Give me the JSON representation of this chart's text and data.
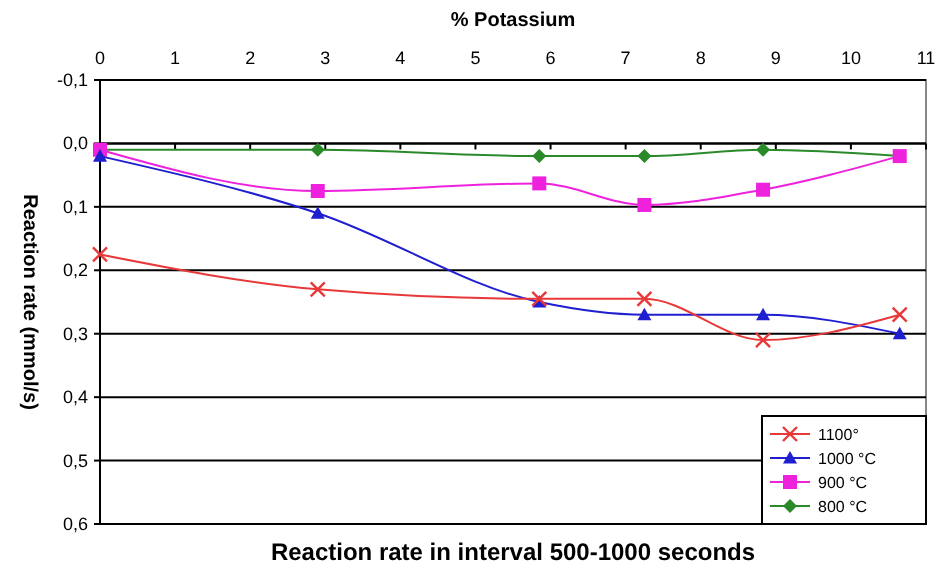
{
  "chart_data": {
    "type": "line",
    "title": "Reaction rate in interval 500-1000 seconds",
    "xlabel": "% Potassium",
    "ylabel": "Reaction rate (mmol/s)",
    "x": [
      0,
      2.9,
      5.85,
      7.25,
      8.83,
      10.65
    ],
    "xlim": [
      0,
      11
    ],
    "xticks": [
      0,
      1,
      2,
      3,
      4,
      5,
      6,
      7,
      8,
      9,
      10,
      11
    ],
    "ylim": [
      0.6,
      -0.1
    ],
    "yticks": [
      {
        "value": -0.1,
        "label": "-0,1"
      },
      {
        "value": 0,
        "label": "0,0"
      },
      {
        "value": 0.1,
        "label": "0,1"
      },
      {
        "value": 0.2,
        "label": "0,2"
      },
      {
        "value": 0.3,
        "label": "0,3"
      },
      {
        "value": 0.4,
        "label": "0,4"
      },
      {
        "value": 0.5,
        "label": "0,5"
      },
      {
        "value": 0.6,
        "label": "0,6"
      }
    ],
    "grid": "y",
    "legend": "bottom right",
    "series": [
      {
        "name": "1100°",
        "color": "#e8393a",
        "marker": "cross",
        "values": [
          0.175,
          0.23,
          0.245,
          0.245,
          0.31,
          0.27
        ]
      },
      {
        "name": "1000 °C",
        "color": "#1f1fd0",
        "marker": "triangle",
        "values": [
          0.02,
          0.11,
          0.25,
          0.27,
          0.27,
          0.3
        ]
      },
      {
        "name": "900 °C",
        "color": "#ee22dd",
        "marker": "square",
        "values": [
          0.01,
          0.075,
          0.063,
          0.097,
          0.073,
          0.02
        ]
      },
      {
        "name": "800 °C",
        "color": "#2a8a2a",
        "marker": "diamond",
        "values": [
          0.01,
          0.01,
          0.02,
          0.02,
          0.01,
          0.02
        ]
      }
    ]
  }
}
